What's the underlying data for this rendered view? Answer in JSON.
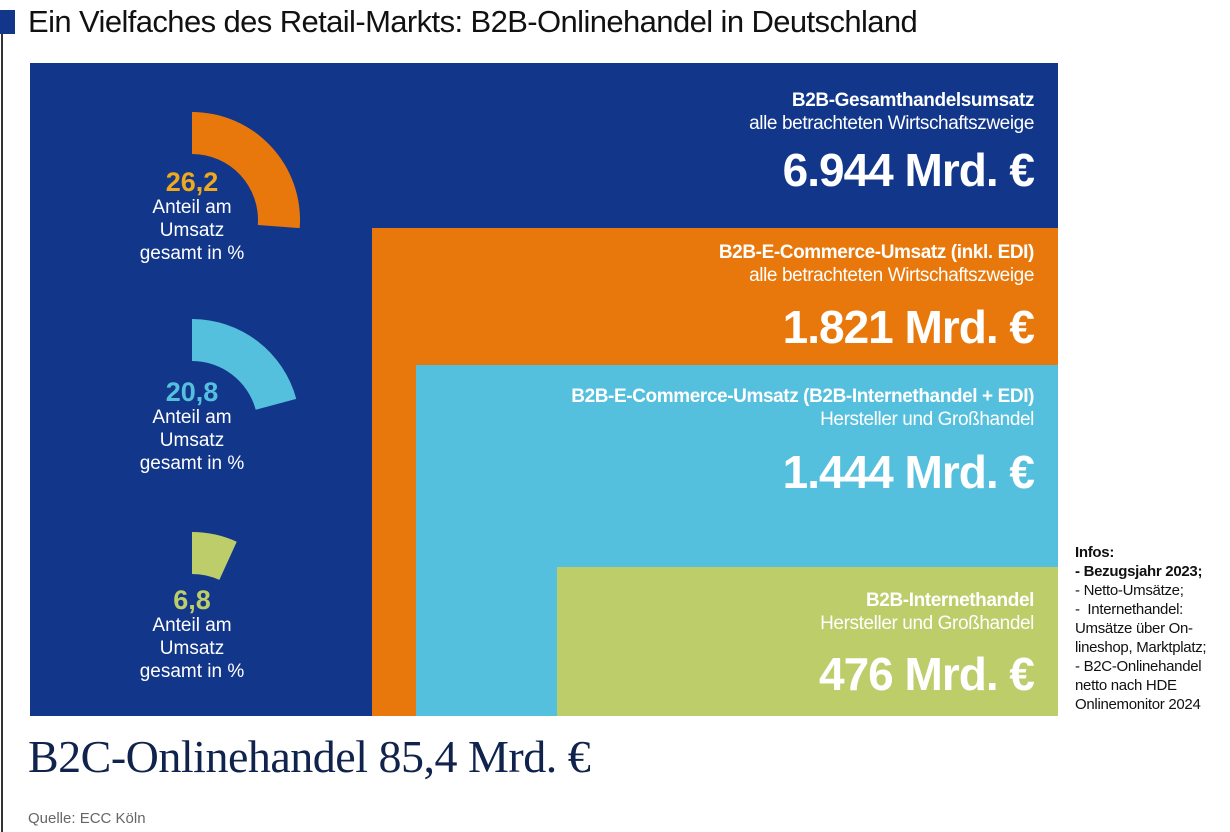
{
  "title": "Ein Vielfaches des Retail-Markts: B2B-Onlinehandel in Deutschland",
  "colors": {
    "blue": "#12378a",
    "orange": "#e8780c",
    "lightblue": "#55c0de",
    "green": "#bccd6a",
    "gold": "#f0a81c"
  },
  "chart_data": {
    "type": "nested-area",
    "unit": "Mrd. €",
    "boxes": [
      {
        "title": "B2B-Gesamthandelsumsatz",
        "subtitle": "alle betrachteten Wirtschaftszweige",
        "value": 6944,
        "value_label": "6.944 Mrd. €",
        "color": "#12378a"
      },
      {
        "title": "B2B-E-Commerce-Umsatz (inkl. EDI)",
        "subtitle": "alle betrachteten Wirtschaftszweige",
        "value": 1821,
        "value_label": "1.821 Mrd. €",
        "color": "#e8780c"
      },
      {
        "title": "B2B-E-Commerce-Umsatz (B2B-Internethandel + EDI)",
        "subtitle": "Hersteller und Großhandel",
        "value": 1444,
        "value_label": "1.444 Mrd. €",
        "color": "#55c0de"
      },
      {
        "title": "B2B-Internethandel",
        "subtitle": "Hersteller und Großhandel",
        "value": 476,
        "value_label": "476 Mrd. €",
        "color": "#bccd6a"
      }
    ],
    "shares": [
      {
        "value": 26.2,
        "label": "26,2",
        "color": "#e8780c",
        "num_color": "#f0a81c"
      },
      {
        "value": 20.8,
        "label": "20,8",
        "color": "#55c0de",
        "num_color": "#55c0de"
      },
      {
        "value": 6.8,
        "label": "6,8",
        "color": "#bccd6a",
        "num_color": "#bccd6a"
      }
    ],
    "share_caption": [
      "Anteil am",
      "Umsatz",
      "gesamt in %"
    ]
  },
  "infos": {
    "heading": "Infos:",
    "lines": [
      "- Bezugsjahr 2023;",
      "- Netto-Umsätze;",
      "-  Internethandel:",
      "Umsätze über On-",
      "lineshop, Marktplatz;",
      "- B2C-Onlinehandel",
      "netto nach HDE",
      "Onlinemonitor 2024"
    ]
  },
  "b2c": "B2C-Onlinehandel 85,4 Mrd. €",
  "source": "Quelle: ECC Köln"
}
